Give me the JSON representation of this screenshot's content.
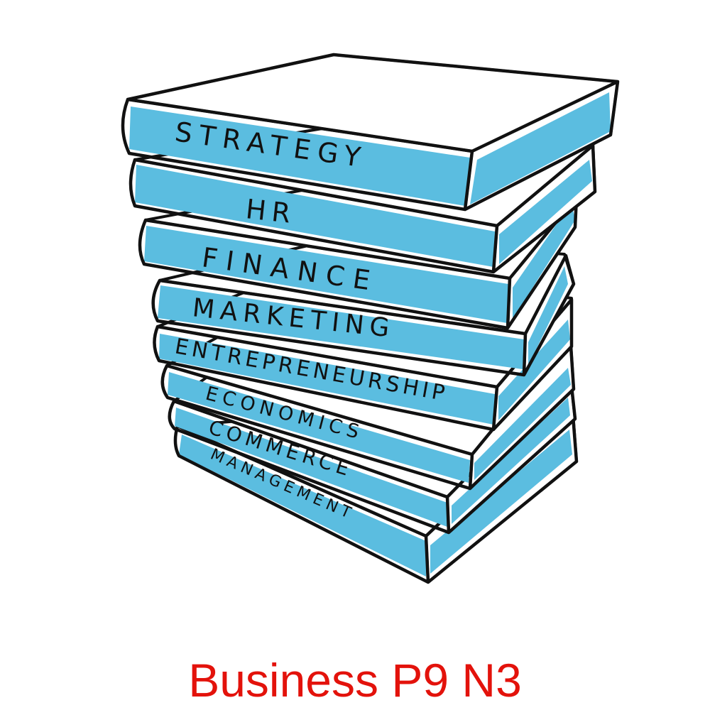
{
  "colors": {
    "outline": "#111111",
    "page_edge": "#5bbde0",
    "cover": "#ffffff",
    "caption": "#e3120b"
  },
  "books": [
    {
      "id": "strategy",
      "label": "STRATEGY"
    },
    {
      "id": "hr",
      "label": "HR"
    },
    {
      "id": "finance",
      "label": "FINANCE"
    },
    {
      "id": "marketing",
      "label": "MARKETING"
    },
    {
      "id": "entrepreneurship",
      "label": "ENTREPRENEURSHIP"
    },
    {
      "id": "economics",
      "label": "ECONOMICS"
    },
    {
      "id": "commerce",
      "label": "COMMERCE"
    },
    {
      "id": "management",
      "label": "MANAGEMENT"
    }
  ],
  "caption": "Business P9 N3"
}
